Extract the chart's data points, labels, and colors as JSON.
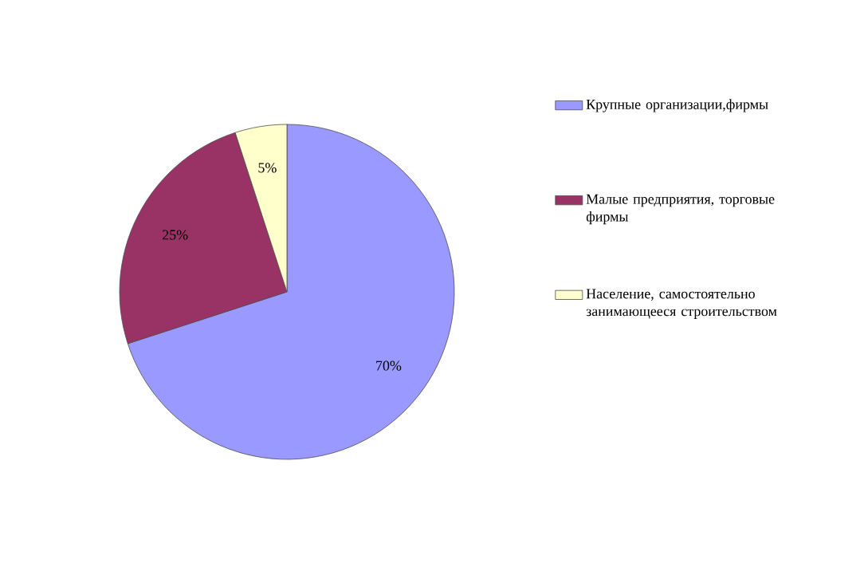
{
  "chart_data": {
    "type": "pie",
    "categories": [
      "Крупные организации,фирмы",
      "Малые предприятия, торговые фирмы",
      "Население, самостоятельно занимающееся строительством"
    ],
    "values": [
      70,
      25,
      5
    ],
    "colors": [
      "#9999ff",
      "#993366",
      "#ffffcc"
    ],
    "value_labels": [
      "70%",
      "25%",
      "5%"
    ],
    "legend": "right"
  }
}
